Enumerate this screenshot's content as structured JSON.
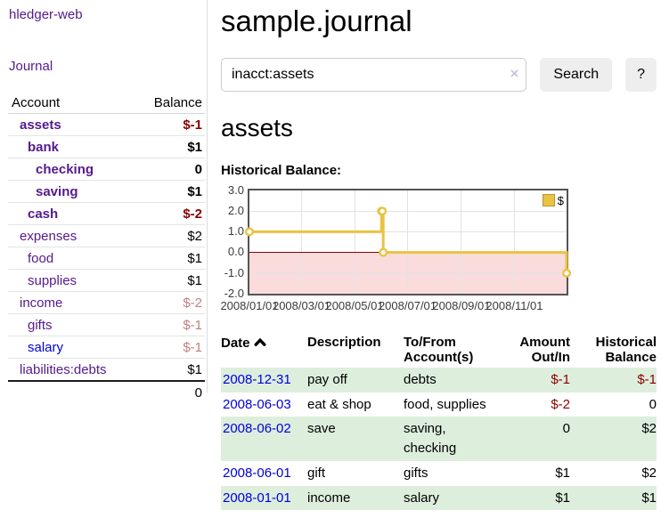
{
  "sidebar": {
    "brand": "hledger-web",
    "journal_link": "Journal",
    "accounts_table": {
      "headers": {
        "account": "Account",
        "balance": "Balance"
      },
      "rows": [
        {
          "name": "assets",
          "depth": 1,
          "bold": true,
          "balance": "$-1",
          "balance_style": "neg-strong"
        },
        {
          "name": "bank",
          "depth": 2,
          "bold": true,
          "balance": "$1",
          "balance_style": "pos"
        },
        {
          "name": "checking",
          "depth": 3,
          "bold": true,
          "balance": "0",
          "balance_style": "pos"
        },
        {
          "name": "saving",
          "depth": 3,
          "bold": true,
          "balance": "$1",
          "balance_style": "pos"
        },
        {
          "name": "cash",
          "depth": 2,
          "bold": true,
          "balance": "$-2",
          "balance_style": "neg-strong"
        },
        {
          "name": "expenses",
          "depth": 1,
          "bold": false,
          "balance": "$2",
          "balance_style": "pos"
        },
        {
          "name": "food",
          "depth": 2,
          "bold": false,
          "balance": "$1",
          "balance_style": "pos"
        },
        {
          "name": "supplies",
          "depth": 2,
          "bold": false,
          "balance": "$1",
          "balance_style": "pos"
        },
        {
          "name": "income",
          "depth": 1,
          "bold": false,
          "balance": "$-2",
          "balance_style": "neg-soft"
        },
        {
          "name": "gifts",
          "depth": 2,
          "bold": false,
          "balance": "$-1",
          "balance_style": "neg-soft"
        },
        {
          "name": "salary",
          "depth": 2,
          "bold": false,
          "balance": "$-1",
          "balance_style": "neg-soft",
          "link_color": "blue"
        },
        {
          "name": "liabilities:debts",
          "depth": 1,
          "bold": false,
          "balance": "$1",
          "balance_style": "pos"
        }
      ],
      "total": "0"
    }
  },
  "header": {
    "title": "sample.journal"
  },
  "search": {
    "value": "inacct:assets",
    "clear_icon": "×",
    "button_label": "Search",
    "help_label": "?"
  },
  "account_page": {
    "title": "assets",
    "chart_label": "Historical Balance:"
  },
  "chart_data": {
    "type": "line",
    "step": true,
    "title": "Historical Balance",
    "series": [
      {
        "name": "$",
        "color": "#e9c345",
        "points": [
          [
            "2008-01-01",
            1
          ],
          [
            "2008-06-01",
            2
          ],
          [
            "2008-06-02",
            2
          ],
          [
            "2008-06-03",
            0
          ],
          [
            "2008-12-31",
            -1
          ]
        ]
      }
    ],
    "xlim": [
      "2008-01-01",
      "2008-12-31"
    ],
    "ylim": [
      -2,
      3
    ],
    "x_ticks": [
      "2008/01/01",
      "2008/03/01",
      "2008/05/01",
      "2008/07/01",
      "2008/09/01",
      "2008/11/01"
    ],
    "y_ticks": [
      3.0,
      2.0,
      1.0,
      0.0,
      -1.0,
      -2.0
    ],
    "legend": {
      "label": "$",
      "position": "top-right"
    },
    "grid": true,
    "negative_region_color": "#fadcdc",
    "zero_line_color": "#8b0000"
  },
  "register": {
    "headers": {
      "date": "Date",
      "description": "Description",
      "accounts": "To/From Account(s)",
      "amount": "Amount Out/In",
      "balance": "Historical Balance"
    },
    "rows": [
      {
        "date": "2008-12-31",
        "description": "pay off",
        "accounts": "debts",
        "amount": "$-1",
        "amount_neg": true,
        "balance": "$-1",
        "balance_neg": true,
        "shaded": true
      },
      {
        "date": "2008-06-03",
        "description": "eat & shop",
        "accounts": "food, supplies",
        "amount": "$-2",
        "amount_neg": true,
        "balance": "0",
        "balance_neg": false,
        "shaded": false
      },
      {
        "date": "2008-06-02",
        "description": "save",
        "accounts": "saving, checking",
        "amount": "0",
        "amount_neg": false,
        "balance": "$2",
        "balance_neg": false,
        "shaded": true
      },
      {
        "date": "2008-06-01",
        "description": "gift",
        "accounts": "gifts",
        "amount": "$1",
        "amount_neg": false,
        "balance": "$2",
        "balance_neg": false,
        "shaded": false
      },
      {
        "date": "2008-01-01",
        "description": "income",
        "accounts": "salary",
        "amount": "$1",
        "amount_neg": false,
        "balance": "$1",
        "balance_neg": false,
        "shaded": true
      }
    ]
  }
}
